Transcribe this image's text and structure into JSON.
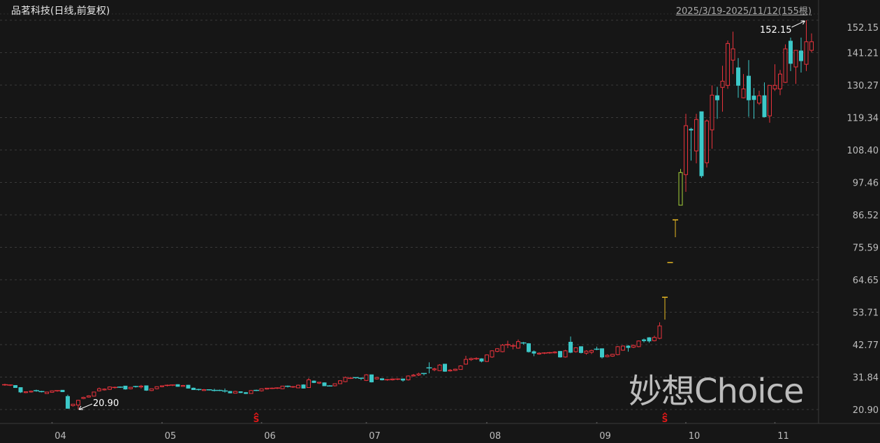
{
  "header": {
    "title": "品茗科技(日线,前复权)",
    "date_range": "2025/3/19-2025/11/12(155根)"
  },
  "watermark": "妙想Choice",
  "colors": {
    "background": "#161616",
    "up": "#e8333c",
    "down": "#3cc8c8",
    "limit_up": "#e8b923",
    "limit_up_open": "#a6d13a",
    "grid": "#3a3a3a",
    "marker": "#e01818"
  },
  "chart_data": {
    "type": "candlestick",
    "title": "品茗科技(日线,前复权)",
    "ylim": [
      20.9,
      152.15
    ],
    "yticks": [
      "152.15",
      "141.21",
      "130.27",
      "119.34",
      "108.40",
      "97.46",
      "86.52",
      "75.59",
      "64.65",
      "53.71",
      "42.77",
      "31.84",
      "20.90"
    ],
    "grid": true,
    "xticks": [
      {
        "label": "04",
        "index": 9
      },
      {
        "label": "05",
        "index": 30
      },
      {
        "label": "06",
        "index": 49
      },
      {
        "label": "07",
        "index": 69
      },
      {
        "label": "08",
        "index": 92
      },
      {
        "label": "09",
        "index": 113
      },
      {
        "label": "10",
        "index": 130
      },
      {
        "label": "11",
        "index": 147
      }
    ],
    "ohlc_fields": [
      "open",
      "high",
      "low",
      "close"
    ],
    "ohlc": [
      [
        29.3,
        29.6,
        28.9,
        29.3
      ],
      [
        29.0,
        29.3,
        28.8,
        29.2
      ],
      [
        29.0,
        29.1,
        28.2,
        28.3
      ],
      [
        28.3,
        28.4,
        26.5,
        26.8
      ],
      [
        26.6,
        27.0,
        26.4,
        26.9
      ],
      [
        26.8,
        27.2,
        26.6,
        27.1
      ],
      [
        27.3,
        27.6,
        26.9,
        27.1
      ],
      [
        27.0,
        27.2,
        26.7,
        26.9
      ],
      [
        26.3,
        26.9,
        26.2,
        26.8
      ],
      [
        26.7,
        27.3,
        26.6,
        27.2
      ],
      [
        27.1,
        27.4,
        26.9,
        27.3
      ],
      [
        27.4,
        27.5,
        26.8,
        26.9
      ],
      [
        25.3,
        25.9,
        21.2,
        21.3
      ],
      [
        22.2,
        22.8,
        21.9,
        22.7
      ],
      [
        22.4,
        24.2,
        20.9,
        24.0
      ],
      [
        24.6,
        25.2,
        24.4,
        25.0
      ],
      [
        25.1,
        25.7,
        24.9,
        25.5
      ],
      [
        25.4,
        26.9,
        25.3,
        26.8
      ],
      [
        27.2,
        28.3,
        27.0,
        27.9
      ],
      [
        27.5,
        28.0,
        27.3,
        27.8
      ],
      [
        27.7,
        28.7,
        27.5,
        28.5
      ],
      [
        28.3,
        28.6,
        28.0,
        28.4
      ],
      [
        28.5,
        28.7,
        28.2,
        28.4
      ],
      [
        28.8,
        28.9,
        27.6,
        27.8
      ],
      [
        27.9,
        28.5,
        27.7,
        28.4
      ],
      [
        28.7,
        28.9,
        28.3,
        28.6
      ],
      [
        28.5,
        29.2,
        28.0,
        28.8
      ],
      [
        28.9,
        29.0,
        27.2,
        27.4
      ],
      [
        27.3,
        28.0,
        27.1,
        27.9
      ],
      [
        27.9,
        28.7,
        27.7,
        28.6
      ],
      [
        28.6,
        29.0,
        28.4,
        28.9
      ],
      [
        28.9,
        29.3,
        28.7,
        29.1
      ],
      [
        29.0,
        29.3,
        28.8,
        29.2
      ],
      [
        29.3,
        29.4,
        28.6,
        28.7
      ],
      [
        28.7,
        29.2,
        28.6,
        29.0
      ],
      [
        29.1,
        29.2,
        28.0,
        28.1
      ],
      [
        28.1,
        28.3,
        27.5,
        27.6
      ],
      [
        27.7,
        27.9,
        27.3,
        27.5
      ],
      [
        27.3,
        27.8,
        27.2,
        27.6
      ],
      [
        27.6,
        27.7,
        27.3,
        27.4
      ],
      [
        27.4,
        27.9,
        27.0,
        27.3
      ],
      [
        27.4,
        27.6,
        27.1,
        27.2
      ],
      [
        27.2,
        28.0,
        26.6,
        27.1
      ],
      [
        27.0,
        27.1,
        26.4,
        26.5
      ],
      [
        26.4,
        27.2,
        26.3,
        27.0
      ],
      [
        26.9,
        27.0,
        26.5,
        26.6
      ],
      [
        26.6,
        26.8,
        26.1,
        26.3
      ],
      [
        26.3,
        27.5,
        26.2,
        27.3
      ],
      [
        27.4,
        27.6,
        27.1,
        27.2
      ],
      [
        27.2,
        28.0,
        27.0,
        27.9
      ],
      [
        27.8,
        28.2,
        27.6,
        28.1
      ],
      [
        28.0,
        28.3,
        27.8,
        28.1
      ],
      [
        28.0,
        28.4,
        27.8,
        28.2
      ],
      [
        27.9,
        28.9,
        27.8,
        28.8
      ],
      [
        28.8,
        29.0,
        28.3,
        28.6
      ],
      [
        28.4,
        28.8,
        28.2,
        28.6
      ],
      [
        28.2,
        29.3,
        28.1,
        29.1
      ],
      [
        29.2,
        29.4,
        28.0,
        28.1
      ],
      [
        28.3,
        31.5,
        28.2,
        30.9
      ],
      [
        30.5,
        30.7,
        29.8,
        30.0
      ],
      [
        29.8,
        30.2,
        29.5,
        30.1
      ],
      [
        29.9,
        30.0,
        28.8,
        28.9
      ],
      [
        28.9,
        29.1,
        28.7,
        28.8
      ],
      [
        28.9,
        29.7,
        28.7,
        29.6
      ],
      [
        29.6,
        30.8,
        29.5,
        30.6
      ],
      [
        30.3,
        32.0,
        30.1,
        31.7
      ],
      [
        31.4,
        31.9,
        31.2,
        31.5
      ],
      [
        31.7,
        31.8,
        31.3,
        31.5
      ],
      [
        31.5,
        31.7,
        30.8,
        31.3
      ],
      [
        30.7,
        32.8,
        30.5,
        32.6
      ],
      [
        32.6,
        32.7,
        30.0,
        30.2
      ],
      [
        31.2,
        31.9,
        31.0,
        31.7
      ],
      [
        31.3,
        31.4,
        30.7,
        30.9
      ],
      [
        30.8,
        31.2,
        30.6,
        31.0
      ],
      [
        30.9,
        31.4,
        30.7,
        31.2
      ],
      [
        31.0,
        31.4,
        30.8,
        31.2
      ],
      [
        31.2,
        31.3,
        30.3,
        30.8
      ],
      [
        30.9,
        32.4,
        30.7,
        32.2
      ],
      [
        32.2,
        32.9,
        32.0,
        32.5
      ],
      [
        32.5,
        33.3,
        32.2,
        32.9
      ],
      [
        33.1,
        33.1,
        32.4,
        33.0
      ],
      [
        35.0,
        36.8,
        33.1,
        34.8
      ],
      [
        34.3,
        35.0,
        33.8,
        34.6
      ],
      [
        34.0,
        36.2,
        33.9,
        35.9
      ],
      [
        36.2,
        36.3,
        33.6,
        33.8
      ],
      [
        33.9,
        34.5,
        33.7,
        34.2
      ],
      [
        34.1,
        34.7,
        33.9,
        34.5
      ],
      [
        34.4,
        35.8,
        34.3,
        35.6
      ],
      [
        36.2,
        39.0,
        36.0,
        37.8
      ],
      [
        37.7,
        38.4,
        37.3,
        38.1
      ],
      [
        37.9,
        38.5,
        37.6,
        38.1
      ],
      [
        38.0,
        38.2,
        36.8,
        37.2
      ],
      [
        37.1,
        39.5,
        36.9,
        39.3
      ],
      [
        38.6,
        40.9,
        38.3,
        40.7
      ],
      [
        40.5,
        41.6,
        40.2,
        41.4
      ],
      [
        40.4,
        43.0,
        40.2,
        42.6
      ],
      [
        42.6,
        44.1,
        41.6,
        42.8
      ],
      [
        42.2,
        43.1,
        41.2,
        42.4
      ],
      [
        41.6,
        44.5,
        41.4,
        43.8
      ],
      [
        43.4,
        43.7,
        42.8,
        43.2
      ],
      [
        43.1,
        43.3,
        40.1,
        40.4
      ],
      [
        40.4,
        40.8,
        38.9,
        39.9
      ],
      [
        39.6,
        40.2,
        39.4,
        39.9
      ],
      [
        39.8,
        40.2,
        39.6,
        40.0
      ],
      [
        39.9,
        40.3,
        39.7,
        40.1
      ],
      [
        40.0,
        40.5,
        39.8,
        40.3
      ],
      [
        40.5,
        40.6,
        38.4,
        38.6
      ],
      [
        38.6,
        41.0,
        38.4,
        40.7
      ],
      [
        43.6,
        45.5,
        39.9,
        40.2
      ],
      [
        40.4,
        41.9,
        40.1,
        41.7
      ],
      [
        42.1,
        42.2,
        39.8,
        40.1
      ],
      [
        39.9,
        40.9,
        39.4,
        40.6
      ],
      [
        40.2,
        41.1,
        39.6,
        40.8
      ],
      [
        41.3,
        42.1,
        40.9,
        41.1
      ],
      [
        41.4,
        41.5,
        38.1,
        38.6
      ],
      [
        38.7,
        39.5,
        38.5,
        39.2
      ],
      [
        38.9,
        39.7,
        38.7,
        39.5
      ],
      [
        39.4,
        42.3,
        39.2,
        42.1
      ],
      [
        40.9,
        42.5,
        40.7,
        42.3
      ],
      [
        42.3,
        42.6,
        40.4,
        41.8
      ],
      [
        41.9,
        42.8,
        41.6,
        42.5
      ],
      [
        42.1,
        44.2,
        41.9,
        44.0
      ],
      [
        44.4,
        44.8,
        43.5,
        44.1
      ],
      [
        45.1,
        45.3,
        43.4,
        44.0
      ],
      [
        44.1,
        45.8,
        43.9,
        45.2
      ],
      [
        44.9,
        50.3,
        44.6,
        49.1
      ],
      [
        58.8,
        58.8,
        51.2,
        58.8
      ],
      [
        70.5,
        70.5,
        70.5,
        70.5
      ],
      [
        84.9,
        84.9,
        79.0,
        84.9
      ],
      [
        89.8,
        102.0,
        89.8,
        100.8
      ],
      [
        100.1,
        120.6,
        94.3,
        116.6
      ],
      [
        115.4,
        115.9,
        104.8,
        115.1
      ],
      [
        108.1,
        120.6,
        103.9,
        118.7
      ],
      [
        121.3,
        121.3,
        99.0,
        99.7
      ],
      [
        104.1,
        118.7,
        102.5,
        118.2
      ],
      [
        115.2,
        130.2,
        108.8,
        126.9
      ],
      [
        126.7,
        129.7,
        118.9,
        125.3
      ],
      [
        129.5,
        136.8,
        121.3,
        131.6
      ],
      [
        130.2,
        145.3,
        129.0,
        144.3
      ],
      [
        138.7,
        148.3,
        134.0,
        142.5
      ],
      [
        136.1,
        139.4,
        126.0,
        130.2
      ],
      [
        126.0,
        134.0,
        125.8,
        129.0
      ],
      [
        133.3,
        138.7,
        119.6,
        125.3
      ],
      [
        126.6,
        129.3,
        118.9,
        125.4
      ],
      [
        124.2,
        128.4,
        123.6,
        126.7
      ],
      [
        126.7,
        131.2,
        119.4,
        119.6
      ],
      [
        119.9,
        130.2,
        117.6,
        130.2
      ],
      [
        129.0,
        137.3,
        128.3,
        130.2
      ],
      [
        129.0,
        135.4,
        126.9,
        134.0
      ],
      [
        131.2,
        144.0,
        131.0,
        142.5
      ],
      [
        145.1,
        146.3,
        135.0,
        137.6
      ],
      [
        136.4,
        142.0,
        130.7,
        142.0
      ],
      [
        141.8,
        146.3,
        134.5,
        138.5
      ],
      [
        137.3,
        152.15,
        135.0,
        144.9
      ],
      [
        142.0,
        147.7,
        141.3,
        144.9
      ]
    ],
    "limit_up_indices": [
      126,
      127,
      128
    ],
    "limit_up_open_indices": [
      129
    ],
    "annotations": [
      {
        "label": "152.15",
        "index": 153,
        "kind": "high"
      },
      {
        "label": "20.90",
        "index": 14,
        "kind": "low"
      }
    ],
    "markers": [
      {
        "label": "S",
        "index": 48
      },
      {
        "label": "S",
        "index": 126
      }
    ]
  }
}
